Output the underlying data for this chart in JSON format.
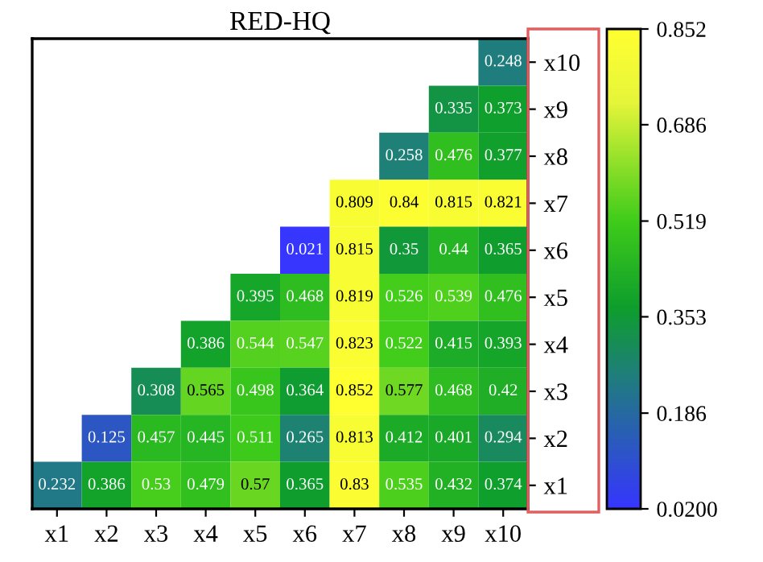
{
  "chart_data": {
    "type": "heatmap",
    "title": "RED-HQ",
    "categories": [
      "x1",
      "x2",
      "x3",
      "x4",
      "x5",
      "x6",
      "x7",
      "x8",
      "x9",
      "x10"
    ],
    "y_categories": [
      "x10",
      "x9",
      "x8",
      "x7",
      "x6",
      "x5",
      "x4",
      "x3",
      "x2",
      "x1"
    ],
    "cells": [
      [
        null,
        null,
        null,
        null,
        null,
        null,
        null,
        null,
        null,
        0.248
      ],
      [
        null,
        null,
        null,
        null,
        null,
        null,
        null,
        null,
        0.335,
        0.373
      ],
      [
        null,
        null,
        null,
        null,
        null,
        null,
        null,
        0.258,
        0.476,
        0.377
      ],
      [
        null,
        null,
        null,
        null,
        null,
        null,
        0.809,
        0.84,
        0.815,
        0.821
      ],
      [
        null,
        null,
        null,
        null,
        null,
        0.021,
        0.815,
        0.35,
        0.44,
        0.365
      ],
      [
        null,
        null,
        null,
        null,
        0.395,
        0.468,
        0.819,
        0.526,
        0.539,
        0.476
      ],
      [
        null,
        null,
        null,
        0.386,
        0.544,
        0.547,
        0.823,
        0.522,
        0.415,
        0.393
      ],
      [
        null,
        null,
        0.308,
        0.565,
        0.498,
        0.364,
        0.852,
        0.577,
        0.468,
        0.42
      ],
      [
        null,
        0.125,
        0.457,
        0.445,
        0.511,
        0.265,
        0.813,
        0.412,
        0.401,
        0.294
      ],
      [
        0.232,
        0.386,
        0.53,
        0.479,
        0.57,
        0.365,
        0.83,
        0.535,
        0.432,
        0.374
      ]
    ],
    "data_labels": true,
    "clim": [
      0.02,
      0.852
    ],
    "cticks": [
      {
        "value": 0.02,
        "label": "0.0200"
      },
      0.186,
      0.353,
      0.519,
      0.686,
      0.852
    ]
  }
}
